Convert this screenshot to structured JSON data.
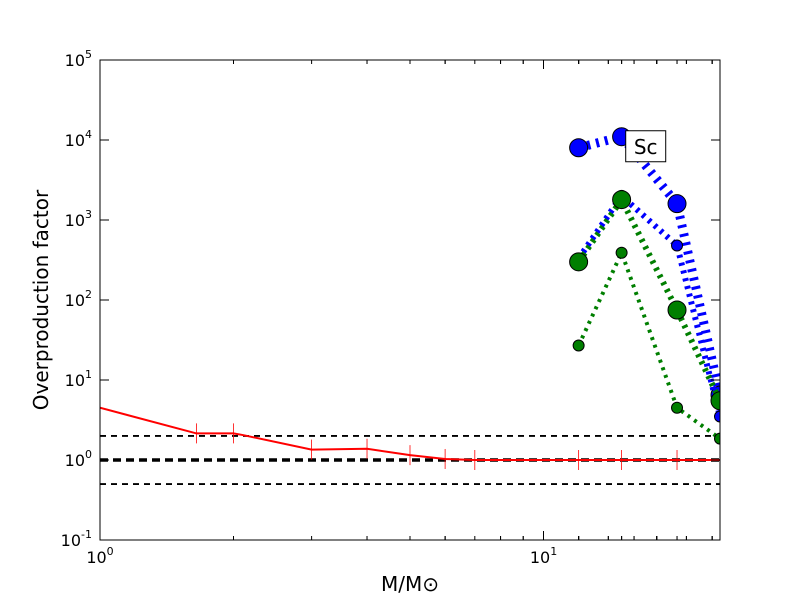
{
  "chart_data": {
    "type": "line",
    "xscale": "log",
    "yscale": "log",
    "xlim": [
      1,
      25
    ],
    "ylim": [
      0.1,
      100000
    ],
    "xlabel": "M/M⊙",
    "ylabel": "Overproduction factor",
    "x_ticks": [
      {
        "value": 1,
        "base": "10",
        "exp": "0"
      },
      {
        "value": 10,
        "base": "10",
        "exp": "1"
      }
    ],
    "y_ticks": [
      {
        "value": 0.1,
        "base": "10",
        "exp": "-1"
      },
      {
        "value": 1,
        "base": "10",
        "exp": "0"
      },
      {
        "value": 10,
        "base": "10",
        "exp": "1"
      },
      {
        "value": 100,
        "base": "10",
        "exp": "2"
      },
      {
        "value": 1000,
        "base": "10",
        "exp": "3"
      },
      {
        "value": 10000,
        "base": "10",
        "exp": "4"
      },
      {
        "value": 100000,
        "base": "10",
        "exp": "5"
      }
    ],
    "annotation": "Sc",
    "annotation_position": {
      "x": 17,
      "y": 8000
    },
    "reference_lines": [
      {
        "y": 2,
        "style": "dashed",
        "color": "#000000",
        "weight": "thin"
      },
      {
        "y": 1,
        "style": "dashed",
        "color": "#000000",
        "weight": "thick"
      },
      {
        "y": 0.5,
        "style": "dashed",
        "color": "#000000",
        "weight": "thin"
      }
    ],
    "series": [
      {
        "color": "#ff0000",
        "style": "solid",
        "markers": "vertical-tick",
        "points": [
          [
            1,
            4.5
          ],
          [
            1.65,
            2.15
          ],
          [
            2,
            2.15
          ],
          [
            2.1,
            2.05
          ],
          [
            3,
            1.35
          ],
          [
            4,
            1.38
          ],
          [
            5,
            1.15
          ],
          [
            6,
            1.03
          ],
          [
            7,
            1.0
          ],
          [
            12,
            1.0
          ],
          [
            15,
            1.0
          ],
          [
            20,
            1.0
          ],
          [
            25,
            1.0
          ]
        ],
        "marker_x": [
          1.65,
          2,
          3,
          4,
          5,
          6,
          7,
          12,
          15,
          20
        ]
      },
      {
        "color": "#0000ff",
        "style": "dotted",
        "weight": "thick",
        "marker_size": "large",
        "points": [
          [
            12,
            8000
          ],
          [
            15,
            11000
          ],
          [
            20,
            1600
          ],
          [
            25,
            6.5
          ]
        ]
      },
      {
        "color": "#0000ff",
        "style": "dotted",
        "weight": "medium",
        "marker_size": "small",
        "points": [
          [
            12,
            330
          ],
          [
            15,
            2000
          ],
          [
            20,
            480
          ],
          [
            25,
            3.5
          ]
        ]
      },
      {
        "color": "#007f00",
        "style": "dotted",
        "weight": "medium",
        "marker_size": "large",
        "points": [
          [
            12,
            300
          ],
          [
            15,
            1800
          ],
          [
            20,
            75
          ],
          [
            25,
            5.5
          ]
        ]
      },
      {
        "color": "#007f00",
        "style": "dotted",
        "weight": "thin",
        "marker_size": "small",
        "points": [
          [
            12,
            27
          ],
          [
            15,
            390
          ],
          [
            20,
            4.5
          ],
          [
            25,
            1.85
          ]
        ]
      }
    ]
  }
}
